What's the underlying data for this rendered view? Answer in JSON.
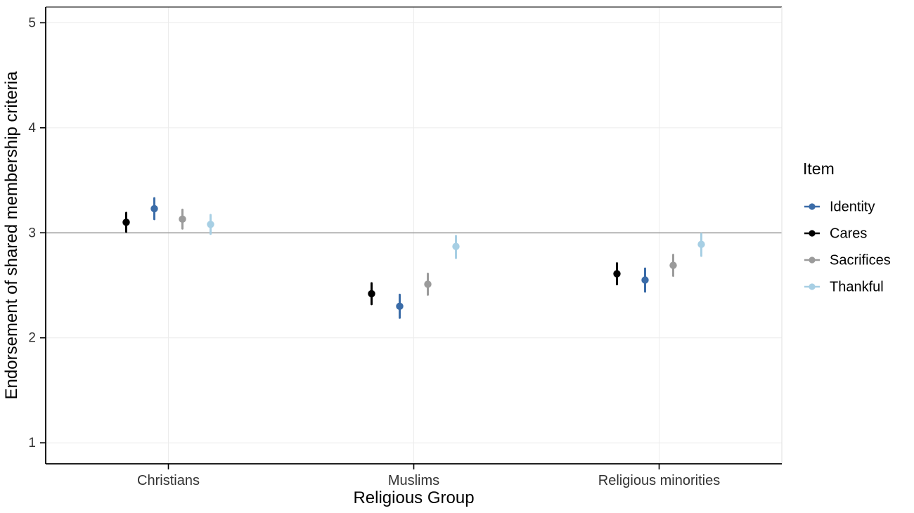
{
  "chart_data": {
    "type": "pointrange",
    "title": "",
    "xlabel": "Religious Group",
    "ylabel": "Endorsement of shared membership criteria",
    "categories": [
      "Christians",
      "Muslims",
      "Religious minorities"
    ],
    "ylim": [
      0.8,
      5.15
    ],
    "yticks": [
      1,
      2,
      3,
      4,
      5
    ],
    "reference_line_y": 3,
    "grid": "on",
    "legend_position": "right",
    "legend_title": "Item",
    "dodge_order": [
      "Cares",
      "Identity",
      "Sacrifices",
      "Thankful"
    ],
    "series": [
      {
        "name": "Identity",
        "color": "#3b6ca8",
        "means": [
          3.23,
          2.3,
          2.55
        ],
        "lower": [
          3.13,
          2.19,
          2.44
        ],
        "upper": [
          3.33,
          2.41,
          2.66
        ]
      },
      {
        "name": "Cares",
        "color": "#000000",
        "means": [
          3.1,
          2.42,
          2.61
        ],
        "lower": [
          3.01,
          2.32,
          2.51
        ],
        "upper": [
          3.19,
          2.52,
          2.71
        ]
      },
      {
        "name": "Sacrifices",
        "color": "#9b9b9b",
        "means": [
          3.13,
          2.51,
          2.69
        ],
        "lower": [
          3.04,
          2.41,
          2.59
        ],
        "upper": [
          3.22,
          2.61,
          2.79
        ]
      },
      {
        "name": "Thankful",
        "color": "#a7cfe4",
        "means": [
          3.08,
          2.87,
          2.89
        ],
        "lower": [
          2.99,
          2.76,
          2.78
        ],
        "upper": [
          3.17,
          2.97,
          2.99
        ]
      }
    ],
    "colors": {
      "grid_major": "#ececec",
      "grid_minor": "#f4f4f4",
      "reference_line": "#a0a0a0",
      "axis_line": "#000000",
      "panel_border_top": "#2b2b2b",
      "panel_border_right": "#e4e4e4",
      "tick_label": "#333333",
      "axis_title": "#000000",
      "legend_text": "#000000"
    }
  }
}
